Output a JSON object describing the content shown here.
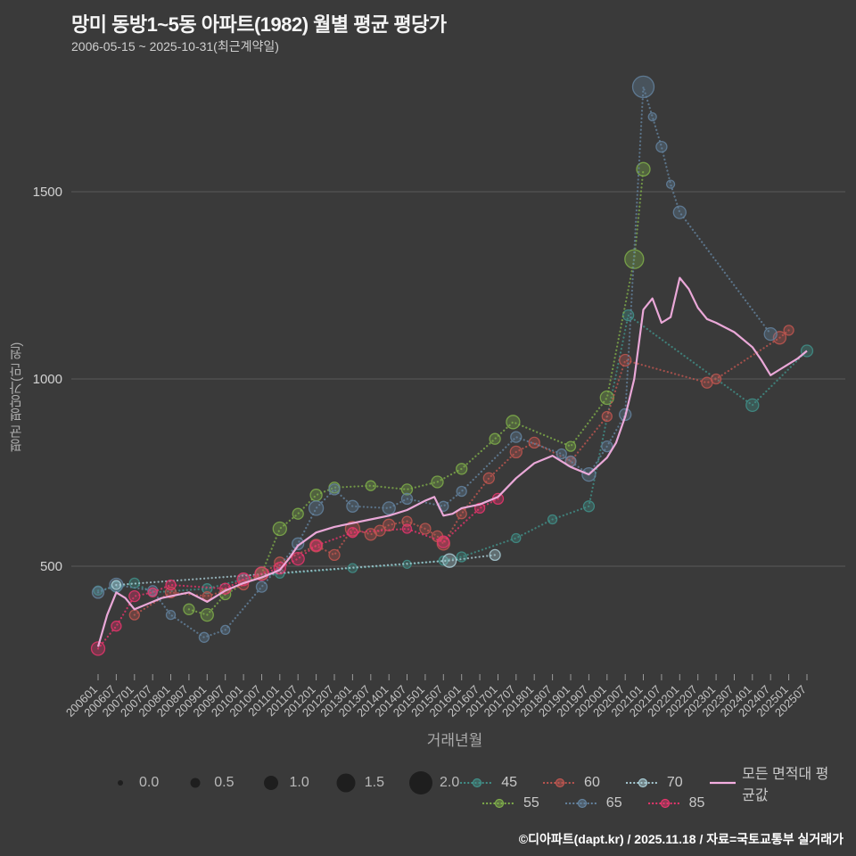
{
  "header": {
    "title": "망미 동방1~5동 아파트(1982) 월별 평균 평당가",
    "subtitle": "2006-05-15 ~ 2025-10-31(최근계약일)"
  },
  "footer": {
    "credit": "©디아파트(dapt.kr) / 2025.11.18 / 자료=국토교통부 실거래가"
  },
  "chart_data": {
    "type": "scatter",
    "title": "망미 동방1~5동 아파트(1982) 월별 평균 평당가",
    "xlabel": "거래년월",
    "ylabel": "평균 평당가(만 원)",
    "background": "#3a3a3a",
    "grid_color": "#7a7a7a",
    "ylim": [
      200,
      1850
    ],
    "y_ticks": [
      500,
      1000,
      1500
    ],
    "x_ticks": [
      "200601",
      "200607",
      "200701",
      "200707",
      "200801",
      "200807",
      "200901",
      "200907",
      "201001",
      "201007",
      "201101",
      "201107",
      "201201",
      "201207",
      "201301",
      "201307",
      "201401",
      "201407",
      "201501",
      "201507",
      "201601",
      "201607",
      "201701",
      "201707",
      "201801",
      "201807",
      "201901",
      "201907",
      "202001",
      "202007",
      "202101",
      "202107",
      "202201",
      "202207",
      "202301",
      "202307",
      "202401",
      "202407",
      "202501",
      "202507"
    ],
    "series": [
      {
        "name": "45",
        "color": "#41918a",
        "points": [
          [
            "200601",
            435,
            0.4
          ],
          [
            "200607",
            445,
            0.6
          ],
          [
            "200701",
            455,
            0.5
          ],
          [
            "200707",
            430,
            0.3
          ],
          [
            "200901",
            440,
            0.5
          ],
          [
            "201001",
            465,
            0.5
          ],
          [
            "201101",
            480,
            0.4
          ],
          [
            "201301",
            495,
            0.4
          ],
          [
            "201407",
            505,
            0.3
          ],
          [
            "201507",
            515,
            0.4
          ],
          [
            "201601",
            525,
            0.5
          ],
          [
            "201707",
            575,
            0.4
          ],
          [
            "201807",
            625,
            0.4
          ],
          [
            "201907",
            660,
            0.6
          ],
          [
            "202008",
            1170,
            0.6
          ],
          [
            "202401",
            930,
            0.8
          ],
          [
            "202507",
            1075,
            0.7
          ]
        ]
      },
      {
        "name": "55",
        "color": "#7fae4a",
        "points": [
          [
            "200807",
            385,
            0.6
          ],
          [
            "200901",
            370,
            0.8
          ],
          [
            "200907",
            425,
            0.6
          ],
          [
            "201007",
            480,
            0.8
          ],
          [
            "201101",
            600,
            0.9
          ],
          [
            "201107",
            640,
            0.6
          ],
          [
            "201201",
            690,
            0.7
          ],
          [
            "201207",
            710,
            0.6
          ],
          [
            "201307",
            715,
            0.5
          ],
          [
            "201407",
            705,
            0.6
          ],
          [
            "201505",
            725,
            0.7
          ],
          [
            "201601",
            760,
            0.6
          ],
          [
            "201612",
            840,
            0.6
          ],
          [
            "201706",
            885,
            0.9
          ],
          [
            "201901",
            820,
            0.5
          ],
          [
            "202001",
            950,
            0.9
          ],
          [
            "202010",
            1320,
            1.5
          ],
          [
            "202101",
            1560,
            0.9
          ]
        ]
      },
      {
        "name": "60",
        "color": "#bf5650",
        "points": [
          [
            "200701",
            370,
            0.5
          ],
          [
            "200801",
            430,
            0.6
          ],
          [
            "200901",
            420,
            0.4
          ],
          [
            "201001",
            450,
            0.5
          ],
          [
            "201101",
            510,
            0.6
          ],
          [
            "201201",
            555,
            0.8
          ],
          [
            "201207",
            530,
            0.6
          ],
          [
            "201301",
            600,
            1.0
          ],
          [
            "201307",
            585,
            0.7
          ],
          [
            "201310",
            595,
            0.6
          ],
          [
            "201401",
            610,
            0.7
          ],
          [
            "201407",
            620,
            0.5
          ],
          [
            "201501",
            600,
            0.6
          ],
          [
            "201505",
            580,
            0.6
          ],
          [
            "201507",
            560,
            0.8
          ],
          [
            "201601",
            640,
            0.5
          ],
          [
            "201610",
            735,
            0.6
          ],
          [
            "201707",
            805,
            0.7
          ],
          [
            "201801",
            830,
            0.6
          ],
          [
            "201901",
            780,
            0.5
          ],
          [
            "202001",
            900,
            0.5
          ],
          [
            "202007",
            1050,
            0.7
          ],
          [
            "202210",
            990,
            0.6
          ],
          [
            "202301",
            1000,
            0.5
          ],
          [
            "202410",
            1110,
            0.8
          ],
          [
            "202501",
            1130,
            0.5
          ]
        ]
      },
      {
        "name": "65",
        "color": "#64839f",
        "points": [
          [
            "200601",
            430,
            0.7
          ],
          [
            "200607",
            450,
            0.9
          ],
          [
            "200707",
            435,
            0.5
          ],
          [
            "200801",
            370,
            0.4
          ],
          [
            "200812",
            310,
            0.5
          ],
          [
            "200907",
            330,
            0.4
          ],
          [
            "201007",
            445,
            0.6
          ],
          [
            "201107",
            560,
            0.7
          ],
          [
            "201201",
            655,
            1.0
          ],
          [
            "201207",
            705,
            0.6
          ],
          [
            "201301",
            660,
            0.7
          ],
          [
            "201401",
            655,
            0.8
          ],
          [
            "201407",
            680,
            0.6
          ],
          [
            "201507",
            660,
            0.5
          ],
          [
            "201601",
            700,
            0.5
          ],
          [
            "201707",
            845,
            0.6
          ],
          [
            "201810",
            800,
            0.5
          ],
          [
            "201901",
            780,
            0.6
          ],
          [
            "201907",
            745,
            0.9
          ],
          [
            "202001",
            820,
            0.6
          ],
          [
            "202007",
            905,
            0.7
          ],
          [
            "202101",
            1780,
            1.8
          ],
          [
            "202104",
            1700,
            0.3
          ],
          [
            "202107",
            1620,
            0.6
          ],
          [
            "202110",
            1520,
            0.3
          ],
          [
            "202201",
            1445,
            0.8
          ],
          [
            "202407",
            1120,
            0.8
          ]
        ]
      },
      {
        "name": "70",
        "color": "#a9cdd6",
        "points": [
          [
            "200607",
            450,
            0.4
          ],
          [
            "201509",
            515,
            0.9
          ],
          [
            "201612",
            530,
            0.6
          ]
        ]
      },
      {
        "name": "85",
        "color": "#e8356d",
        "points": [
          [
            "200601",
            280,
            0.9
          ],
          [
            "200607",
            340,
            0.5
          ],
          [
            "200701",
            420,
            0.6
          ],
          [
            "200707",
            430,
            0.4
          ],
          [
            "200801",
            450,
            0.5
          ],
          [
            "200907",
            440,
            0.6
          ],
          [
            "201001",
            465,
            0.8
          ],
          [
            "201007",
            480,
            0.9
          ],
          [
            "201101",
            495,
            0.7
          ],
          [
            "201107",
            520,
            0.8
          ],
          [
            "201201",
            555,
            0.6
          ],
          [
            "201301",
            590,
            0.5
          ],
          [
            "201407",
            600,
            0.4
          ],
          [
            "201507",
            565,
            0.7
          ],
          [
            "201607",
            655,
            0.5
          ],
          [
            "201701",
            680,
            0.6
          ]
        ]
      }
    ],
    "average_line": {
      "name": "모든 면적대 평균값",
      "color": "#f3aee0",
      "months": [
        "200601",
        "200604",
        "200607",
        "200610",
        "200701",
        "200704",
        "200707",
        "200710",
        "200801",
        "200807",
        "200901",
        "200907",
        "201001",
        "201007",
        "201101",
        "201104",
        "201107",
        "201201",
        "201207",
        "201301",
        "201307",
        "201401",
        "201407",
        "201501",
        "201504",
        "201507",
        "201510",
        "201601",
        "201607",
        "201701",
        "201707",
        "201801",
        "201807",
        "201901",
        "201907",
        "202001",
        "202004",
        "202007",
        "202010",
        "202101",
        "202104",
        "202107",
        "202110",
        "202201",
        "202204",
        "202207",
        "202210",
        "202301",
        "202307",
        "202401",
        "202404",
        "202407",
        "202410",
        "202501",
        "202504",
        "202507"
      ],
      "values": [
        285,
        370,
        430,
        415,
        385,
        395,
        405,
        415,
        420,
        430,
        405,
        435,
        455,
        470,
        490,
        520,
        555,
        590,
        605,
        615,
        625,
        635,
        650,
        675,
        685,
        635,
        640,
        655,
        665,
        685,
        735,
        775,
        795,
        765,
        745,
        790,
        830,
        900,
        1000,
        1185,
        1215,
        1150,
        1165,
        1270,
        1240,
        1190,
        1160,
        1150,
        1125,
        1085,
        1050,
        1010,
        1025,
        1040,
        1055,
        1075
      ]
    },
    "size_legend": {
      "values": [
        "0.0",
        "0.5",
        "1.0",
        "1.5",
        "2.0"
      ],
      "dot_color": "#1c1c1c"
    },
    "legend": {
      "row1": [
        "45",
        "60",
        "70",
        "모든 면적대 평균값"
      ],
      "row2": [
        "55",
        "65",
        "85"
      ]
    }
  }
}
